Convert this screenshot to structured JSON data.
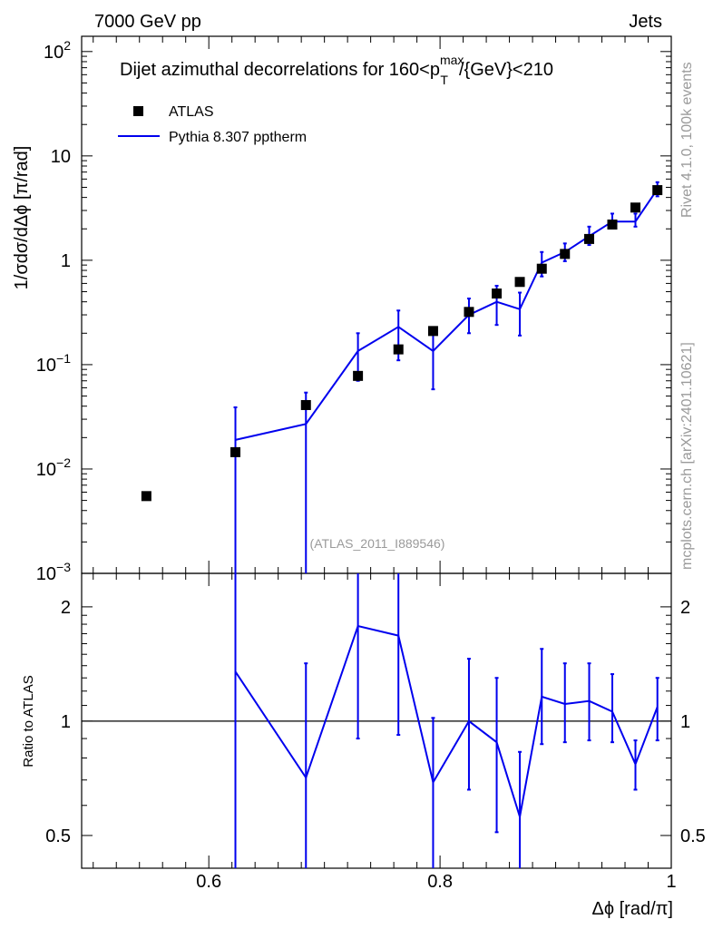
{
  "header": {
    "left_label": "7000 GeV pp",
    "right_label": "Jets"
  },
  "side_labels": {
    "rivet": "Rivet 4.1.0,  100k events",
    "mcplots": "mcplots.cern.ch [arXiv:2401.10621]"
  },
  "colors": {
    "data": "#000000",
    "mc": "#0000ee",
    "watermark": "#9a9a9a"
  },
  "chart_data": [
    {
      "type": "scatter",
      "panel": "main",
      "title": "Dijet azimuthal decorrelations for 160<p_T^max/{GeV}<210",
      "title_parts": {
        "prefix": "Dijet azimuthal decorrelations for 160<p",
        "sup": "max",
        "sub": "T",
        "suffix": "/{GeV}<210"
      },
      "ylabel": "1/σdσ/dΔϕ [π/rad]",
      "xlabel": "",
      "yscale": "log",
      "xlim": [
        0.49,
        1.0
      ],
      "ylim": [
        0.001,
        140
      ],
      "y_ticks": [
        {
          "value": 0.001,
          "base": "10",
          "exp": "−3"
        },
        {
          "value": 0.01,
          "base": "10",
          "exp": "−2"
        },
        {
          "value": 0.1,
          "base": "10",
          "exp": "−1"
        },
        {
          "value": 1,
          "base": "1",
          "exp": ""
        },
        {
          "value": 10,
          "base": "10",
          "exp": ""
        },
        {
          "value": 100,
          "base": "10",
          "exp": "2"
        }
      ],
      "watermark": "(ATLAS_2011_I889546)",
      "legend": {
        "placement": "top-left",
        "entries": [
          "ATLAS",
          "Pythia 8.307 pptherm"
        ]
      },
      "series": [
        {
          "name": "ATLAS",
          "style": "markers",
          "x": [
            0.546,
            0.623,
            0.684,
            0.729,
            0.764,
            0.794,
            0.825,
            0.849,
            0.869,
            0.888,
            0.908,
            0.929,
            0.949,
            0.969,
            0.988
          ],
          "y": [
            0.0055,
            0.0145,
            0.041,
            0.078,
            0.14,
            0.21,
            0.32,
            0.48,
            0.62,
            0.83,
            1.15,
            1.6,
            2.2,
            3.2,
            4.7
          ]
        },
        {
          "name": "Pythia 8.307 pptherm",
          "style": "step-line",
          "x": [
            0.623,
            0.684,
            0.729,
            0.764,
            0.794,
            0.825,
            0.849,
            0.869,
            0.888,
            0.908,
            0.929,
            0.949,
            0.969,
            0.988
          ],
          "y": [
            0.019,
            0.027,
            0.135,
            0.23,
            0.135,
            0.3,
            0.4,
            0.34,
            0.95,
            1.2,
            1.7,
            2.35,
            2.35,
            4.8
          ],
          "err_low": [
            0.0,
            0.0,
            0.07,
            0.11,
            0.058,
            0.2,
            0.24,
            0.19,
            0.7,
            0.98,
            1.4,
            2.05,
            2.1,
            4.1
          ],
          "err_high": [
            0.039,
            0.054,
            0.2,
            0.33,
            0.21,
            0.43,
            0.57,
            0.49,
            1.2,
            1.45,
            2.1,
            2.8,
            2.8,
            5.6
          ]
        }
      ]
    },
    {
      "type": "line",
      "panel": "ratio",
      "ylabel": "Ratio to ATLAS",
      "xlabel": "Δϕ [rad/π]",
      "yscale": "log",
      "xlim": [
        0.49,
        1.0
      ],
      "ylim": [
        0.41,
        2.45
      ],
      "y_ticks": [
        0.5,
        1,
        2
      ],
      "y_tick_labels": [
        "0.5",
        "1",
        "2"
      ],
      "x_ticks": [
        0.6,
        0.8,
        1.0
      ],
      "x_tick_labels": [
        "0.6",
        "0.8",
        "1"
      ],
      "reference_line": 1,
      "series": [
        {
          "name": "Pythia 8.307 pptherm / ATLAS",
          "x": [
            0.623,
            0.684,
            0.729,
            0.764,
            0.794,
            0.825,
            0.849,
            0.869,
            0.888,
            0.908,
            0.929,
            0.949,
            0.969,
            0.988
          ],
          "y": [
            1.35,
            0.71,
            1.78,
            1.68,
            0.69,
            1.0,
            0.88,
            0.56,
            1.16,
            1.11,
            1.13,
            1.06,
            0.77,
            1.09
          ],
          "err_low": [
            0.3,
            0.3,
            0.9,
            0.92,
            0.3,
            0.66,
            0.51,
            0.3,
            0.87,
            0.88,
            0.89,
            0.88,
            0.66,
            0.89
          ],
          "err_high": [
            3.0,
            1.42,
            3.0,
            2.5,
            1.02,
            1.46,
            1.3,
            0.83,
            1.55,
            1.42,
            1.42,
            1.33,
            0.89,
            1.3
          ]
        }
      ]
    }
  ]
}
